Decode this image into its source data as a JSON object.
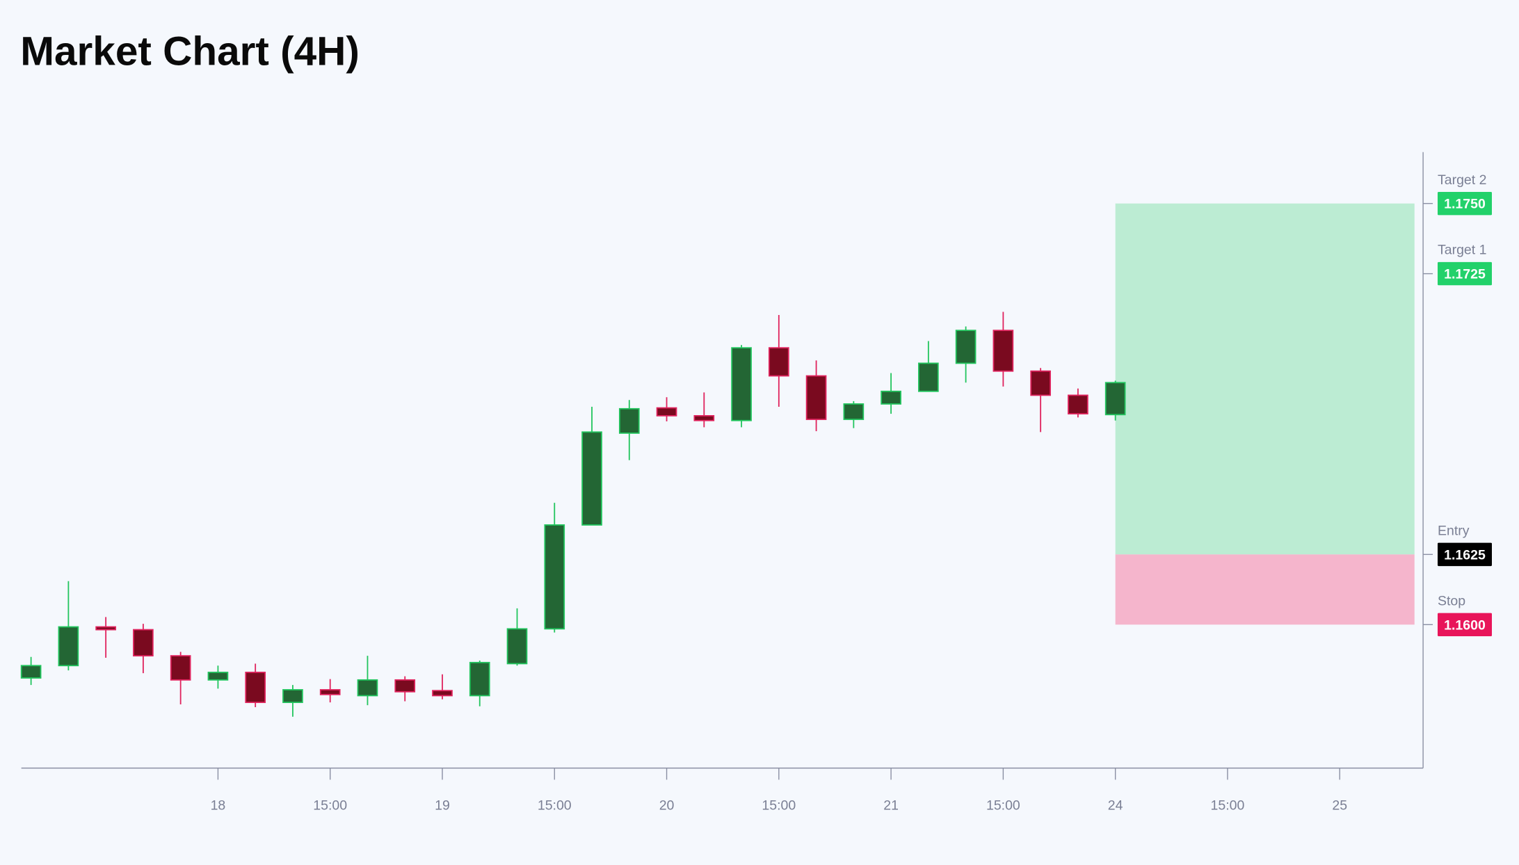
{
  "chart_data": {
    "type": "candlestick",
    "title": "Market Chart (4H)",
    "x": [
      0,
      1,
      2,
      3,
      4,
      5,
      6,
      7,
      8,
      9,
      10,
      11,
      12,
      13,
      14,
      15,
      16,
      17,
      18,
      19,
      20,
      21,
      22,
      23,
      24,
      25,
      26,
      27,
      28,
      29
    ],
    "open": [
      1.1581,
      1.15854,
      1.15992,
      1.15982,
      1.15889,
      1.15803,
      1.1583,
      1.15723,
      1.15768,
      1.15747,
      1.15803,
      1.15765,
      1.15747,
      1.15861,
      1.15985,
      1.16355,
      1.16682,
      1.16772,
      1.16744,
      1.16727,
      1.16986,
      1.16886,
      1.16731,
      1.16786,
      1.16831,
      1.16931,
      1.17048,
      1.16903,
      1.16817,
      1.16748
    ],
    "high": [
      1.15885,
      1.16155,
      1.16027,
      1.16003,
      1.15903,
      1.15854,
      1.15861,
      1.15785,
      1.15806,
      1.15889,
      1.15816,
      1.15823,
      1.15872,
      1.16058,
      1.16434,
      1.16776,
      1.168,
      1.1681,
      1.16827,
      1.16996,
      1.17103,
      1.16941,
      1.16796,
      1.16896,
      1.1701,
      1.17062,
      1.17114,
      1.16914,
      1.16841,
      1.16869
    ],
    "low": [
      1.15785,
      1.15837,
      1.15882,
      1.15827,
      1.15716,
      1.15772,
      1.15706,
      1.15672,
      1.15723,
      1.15713,
      1.15727,
      1.15734,
      1.15709,
      1.15854,
      1.15972,
      1.16355,
      1.16586,
      1.16724,
      1.16703,
      1.16703,
      1.16776,
      1.16689,
      1.167,
      1.16751,
      1.16831,
      1.16862,
      1.16848,
      1.16686,
      1.16738,
      1.16727
    ],
    "close": [
      1.15854,
      1.15992,
      1.15982,
      1.15889,
      1.15803,
      1.1583,
      1.15723,
      1.15768,
      1.15751,
      1.15803,
      1.15761,
      1.15747,
      1.15865,
      1.15985,
      1.16355,
      1.16686,
      1.16769,
      1.16744,
      1.16727,
      1.16986,
      1.16886,
      1.16731,
      1.16786,
      1.16831,
      1.16931,
      1.17048,
      1.16903,
      1.16817,
      1.16751,
      1.16862
    ],
    "up_color": {
      "body": "#236634",
      "edge": "#22c55e"
    },
    "down_color": {
      "body": "#7a0a1f",
      "edge": "#e0245e"
    },
    "xlim": [
      -0.26,
      37.23
    ],
    "xticks": [
      {
        "value": 5,
        "label": "18"
      },
      {
        "value": 8,
        "label": "15:00"
      },
      {
        "value": 11,
        "label": "19"
      },
      {
        "value": 14,
        "label": "15:00"
      },
      {
        "value": 17,
        "label": "20"
      },
      {
        "value": 20,
        "label": "15:00"
      },
      {
        "value": 23,
        "label": "21"
      },
      {
        "value": 26,
        "label": "15:00"
      },
      {
        "value": 29,
        "label": "24"
      },
      {
        "value": 32,
        "label": "15:00"
      },
      {
        "value": 35,
        "label": "25"
      }
    ],
    "ylim": [
      1.15489,
      1.17683
    ],
    "position": {
      "start": 29,
      "end": 37,
      "profit_color": "#bcecd3",
      "loss_color": "#f5b5cc",
      "targets": [
        {
          "name": "Target 2",
          "price": {
            "value": 1.175,
            "label": "1.1750"
          },
          "color": "#22d16a"
        },
        {
          "name": "Target 1",
          "price": {
            "value": 1.1725,
            "label": "1.1725"
          },
          "color": "#22d16a"
        }
      ],
      "entry": {
        "name": "Entry",
        "price": {
          "value": 1.1625,
          "label": "1.1625"
        },
        "color": "#000000"
      },
      "stop": {
        "name": "Stop",
        "price": {
          "value": 1.16,
          "label": "1.1600"
        },
        "color": "#e8155a"
      }
    }
  }
}
